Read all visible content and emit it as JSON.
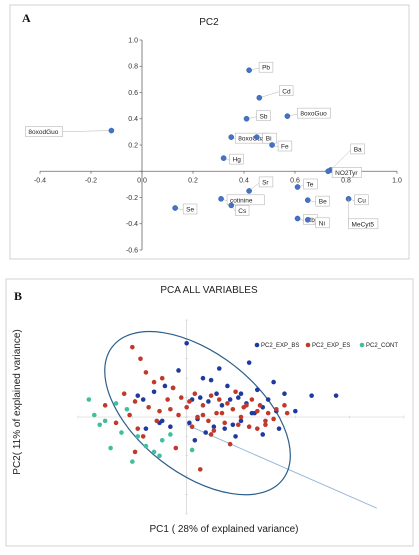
{
  "panel_a": {
    "letter": "A",
    "chart_data": {
      "type": "scatter",
      "title": "PC2",
      "xlim": [
        -0.4,
        1.0
      ],
      "ylim": [
        -0.6,
        1.0
      ],
      "xticks": [
        "-0.4",
        "-0.2",
        "0.0",
        "0.2",
        "0.4",
        "0.6",
        "0.8",
        "1.0"
      ],
      "yticks": [
        "1.0",
        "0.8",
        "0.6",
        "0.4",
        "0.2",
        "0.0",
        "-0.2",
        "-0.4",
        "-0.6"
      ],
      "marker_color": "#4472c4",
      "points": [
        {
          "label": "Pb",
          "x": 0.42,
          "y": 0.77
        },
        {
          "label": "Cd",
          "x": 0.46,
          "y": 0.56
        },
        {
          "label": "Sb",
          "x": 0.41,
          "y": 0.4
        },
        {
          "label": "8oxoGuo",
          "x": 0.57,
          "y": 0.42
        },
        {
          "label": "8oxodGuo",
          "x": -0.12,
          "y": 0.31
        },
        {
          "label": "8oxoGua",
          "x": 0.35,
          "y": 0.26
        },
        {
          "label": "Bi",
          "x": 0.45,
          "y": 0.26
        },
        {
          "label": "Fe",
          "x": 0.51,
          "y": 0.2
        },
        {
          "label": "Hg",
          "x": 0.32,
          "y": 0.1
        },
        {
          "label": "Ba",
          "x": 0.74,
          "y": 0.01
        },
        {
          "label": "NO2Tyr",
          "x": 0.73,
          "y": 0.0
        },
        {
          "label": "Te",
          "x": 0.61,
          "y": -0.12
        },
        {
          "label": "Sr",
          "x": 0.42,
          "y": -0.15
        },
        {
          "label": "cotinine",
          "x": 0.31,
          "y": -0.21
        },
        {
          "label": "Be",
          "x": 0.65,
          "y": -0.22
        },
        {
          "label": "Cs",
          "x": 0.35,
          "y": -0.26
        },
        {
          "label": "Se",
          "x": 0.13,
          "y": -0.28
        },
        {
          "label": "Cu",
          "x": 0.81,
          "y": -0.21
        },
        {
          "label": "Rb",
          "x": 0.61,
          "y": -0.36
        },
        {
          "label": "Ni",
          "x": 0.65,
          "y": -0.37
        },
        {
          "label": "MeCyt5",
          "x": 0.81,
          "y": -0.21
        }
      ]
    }
  },
  "panel_b": {
    "letter": "B",
    "chart_data": {
      "type": "scatter",
      "title": "PCA ALL VARIABLES",
      "xlabel": "PC1 ( 28% of explained variance)",
      "ylabel": "PC2( 11% of explained variance)",
      "xlim": [
        -4,
        8
      ],
      "ylim": [
        -5,
        5
      ],
      "grid": false,
      "legend_position": "top-right",
      "series": [
        {
          "name": "PC2_EXP_BS",
          "color": "#1f3a9e",
          "x": [
            0.0,
            -0.3,
            0.6,
            0.9,
            1.2,
            1.5,
            2.0,
            2.3,
            2.6,
            3.2,
            3.6,
            4.6,
            5.5,
            -1.8,
            -1.6,
            -1.2,
            -0.8,
            -0.5,
            0.2,
            0.5,
            0.8,
            1.1,
            1.3,
            1.6,
            1.9,
            2.2,
            2.4,
            2.8,
            3.0,
            3.3,
            -1.5,
            -1.0,
            -0.6,
            0.1,
            0.4,
            0.7,
            1.0,
            1.4,
            1.7,
            2.0,
            2.5,
            2.8,
            4.0,
            0.3,
            1.8,
            3.4,
            -0.9
          ],
          "y": [
            3.8,
            2.4,
            2.0,
            1.9,
            2.5,
            1.6,
            1.2,
            2.8,
            1.4,
            1.8,
            1.2,
            1.1,
            1.1,
            1.1,
            0.9,
            1.3,
            1.6,
            1.5,
            0.9,
            1.0,
            0.8,
            1.2,
            0.6,
            0.9,
            1.0,
            0.7,
            0.2,
            0.5,
            0.9,
            0.3,
            -0.6,
            -0.3,
            -0.5,
            -0.3,
            -0.1,
            -0.8,
            -0.5,
            -0.6,
            -0.4,
            -0.2,
            0.2,
            -0.9,
            0.3,
            -1.2,
            -1.0,
            -0.6,
            -0.2
          ]
        },
        {
          "name": "PC2_EXP_ES",
          "color": "#c0392b",
          "x": [
            -2.0,
            -1.7,
            -1.5,
            -1.2,
            -0.9,
            -0.5,
            -0.2,
            0.1,
            0.3,
            0.6,
            0.9,
            1.2,
            1.5,
            1.8,
            2.1,
            2.4,
            2.7,
            3.0,
            3.3,
            3.6,
            -2.3,
            -1.9,
            -1.4,
            -1.0,
            -0.7,
            -0.3,
            0.0,
            0.4,
            0.8,
            1.1,
            1.4,
            1.7,
            2.0,
            2.3,
            2.6,
            2.9,
            3.2,
            3.7,
            -2.6,
            -2.1,
            -1.8,
            -1.1,
            -0.6,
            0.2,
            0.6,
            1.0,
            1.3,
            1.9,
            2.2,
            2.6,
            2.9,
            -1.6,
            -0.4,
            -1.9,
            0.5,
            1.6,
            0.9,
            -3.0
          ],
          "y": [
            3.6,
            3.0,
            2.3,
            1.8,
            2.0,
            1.5,
            1.0,
            0.8,
            1.2,
            0.6,
            1.1,
            0.9,
            0.7,
            1.3,
            0.5,
            0.9,
            0.6,
            0.2,
            0.4,
            0.6,
            1.2,
            0.8,
            0.5,
            0.3,
            0.9,
            0.1,
            0.5,
            0.0,
            -0.2,
            0.2,
            -0.3,
            0.4,
            0.0,
            -0.5,
            0.3,
            -0.4,
            -0.1,
            0.2,
            -0.3,
            0.1,
            -0.6,
            -0.2,
            0.4,
            -0.5,
            0.1,
            -0.7,
            0.2,
            -0.4,
            0.6,
            -0.6,
            -0.2,
            -1.0,
            -1.6,
            -1.8,
            -2.7,
            -1.4,
            -0.9,
            0.6
          ]
        },
        {
          "name": "PC2_CONT",
          "color": "#3fbfa0",
          "x": [
            -3.6,
            -3.4,
            -3.0,
            -2.6,
            -2.2,
            -2.4,
            -1.8,
            -1.5,
            -1.2,
            -0.9,
            -0.6,
            -2.8,
            -2.0,
            -1.0,
            0.2,
            -3.2
          ],
          "y": [
            0.9,
            0.1,
            -0.2,
            0.7,
            0.4,
            -0.8,
            -1.0,
            -1.5,
            -1.8,
            -1.2,
            -0.9,
            -1.6,
            -2.3,
            -2.0,
            -1.7,
            -0.4
          ]
        }
      ],
      "ellipse_color": "#2e5f8a",
      "line_color": "#9ab8d8"
    }
  }
}
